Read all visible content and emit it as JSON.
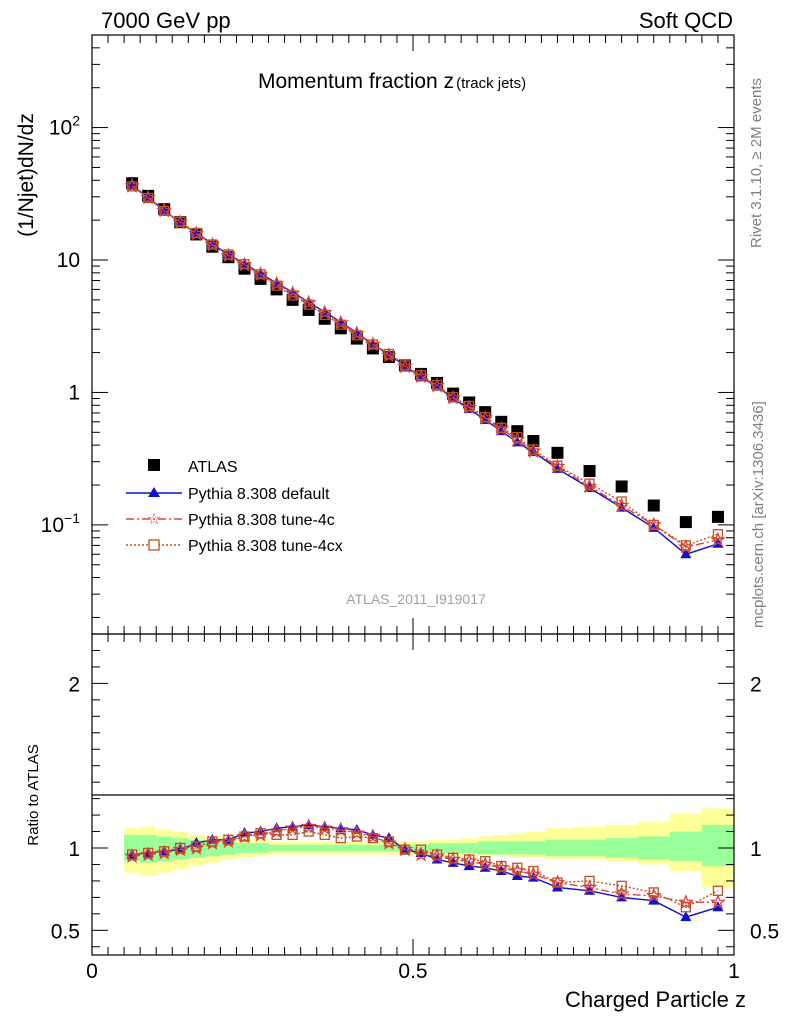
{
  "header": {
    "left": "7000 GeV pp",
    "right": "Soft QCD"
  },
  "side_labels": {
    "rivet": "Rivet 3.1.10, ≥ 2M events",
    "mcplots": "mcplots.cern.ch [arXiv:1306.3436]"
  },
  "watermark": "ATLAS_2011_I919017",
  "chart_data": [
    {
      "type": "scatter",
      "title_main": "Momentum fraction z",
      "title_sub": "(track jets)",
      "ylabel": "(1/Njet)dN/dz",
      "xlabel": "",
      "yscale": "log",
      "ylim": [
        0.015,
        500
      ],
      "xlim": [
        0,
        1
      ],
      "y_tick_labels": [
        {
          "value": 100,
          "base": "10",
          "exp": "2"
        },
        {
          "value": 10,
          "base": "10"
        },
        {
          "value": 1,
          "base": "1"
        },
        {
          "value": 0.1,
          "base": "10",
          "exp": "−1"
        }
      ],
      "legend_position": "bottom-left",
      "x": [
        0.0625,
        0.0875,
        0.1125,
        0.1375,
        0.1625,
        0.1875,
        0.2125,
        0.2375,
        0.2625,
        0.2875,
        0.3125,
        0.3375,
        0.3625,
        0.3875,
        0.4125,
        0.4375,
        0.4625,
        0.4875,
        0.5125,
        0.5375,
        0.5625,
        0.5875,
        0.6125,
        0.6375,
        0.6625,
        0.6875,
        0.725,
        0.775,
        0.825,
        0.875,
        0.925,
        0.975
      ],
      "series": [
        {
          "name": "ATLAS",
          "color": "#000000",
          "marker": "square",
          "values": [
            38,
            30.5,
            24.2,
            19.3,
            15.6,
            12.6,
            10.5,
            8.6,
            7.2,
            6.0,
            5.0,
            4.2,
            3.6,
            3.05,
            2.55,
            2.15,
            1.85,
            1.6,
            1.38,
            1.18,
            0.98,
            0.84,
            0.71,
            0.6,
            0.51,
            0.43,
            0.35,
            0.255,
            0.195,
            0.14,
            0.105,
            0.115
          ]
        },
        {
          "name": "Pythia 8.308 default",
          "color": "#1010cc",
          "marker": "triangle",
          "line": "solid",
          "values": [
            36.5,
            29.6,
            23.7,
            19.0,
            16.0,
            13.2,
            11.0,
            9.4,
            7.9,
            6.7,
            5.7,
            4.8,
            4.05,
            3.4,
            2.82,
            2.3,
            1.95,
            1.58,
            1.3,
            1.11,
            0.9,
            0.75,
            0.62,
            0.51,
            0.42,
            0.355,
            0.265,
            0.19,
            0.135,
            0.095,
            0.06,
            0.072
          ]
        },
        {
          "name": "Pythia 8.308 tune-4c",
          "color": "#e04040",
          "marker": "star",
          "line": "dashdot",
          "values": [
            36.2,
            29.5,
            23.6,
            19.2,
            15.8,
            13.0,
            10.8,
            9.2,
            7.8,
            6.6,
            5.6,
            4.75,
            4.0,
            3.35,
            2.78,
            2.3,
            1.9,
            1.57,
            1.32,
            1.12,
            0.91,
            0.77,
            0.64,
            0.53,
            0.44,
            0.36,
            0.275,
            0.195,
            0.14,
            0.1,
            0.068,
            0.077
          ]
        },
        {
          "name": "Pythia 8.308 tune-4cx",
          "color": "#c05020",
          "marker": "open-square",
          "line": "dotted",
          "values": [
            36.0,
            29.4,
            23.5,
            19.4,
            16.0,
            13.1,
            11.0,
            9.3,
            7.8,
            6.4,
            5.4,
            4.6,
            3.85,
            3.25,
            2.7,
            2.3,
            1.95,
            1.6,
            1.35,
            1.14,
            0.92,
            0.79,
            0.65,
            0.54,
            0.46,
            0.37,
            0.28,
            0.205,
            0.15,
            0.1,
            0.07,
            0.085
          ]
        }
      ]
    },
    {
      "type": "line",
      "ylabel": "Ratio to ATLAS",
      "xlabel": "Charged Particle z",
      "ylim": [
        0.35,
        2.3
      ],
      "xlim": [
        0,
        1
      ],
      "y_tick_labels": [
        "2",
        "1",
        "0.5"
      ],
      "x_tick_labels": [
        "0",
        "0.5",
        "1"
      ],
      "x": [
        0.0625,
        0.0875,
        0.1125,
        0.1375,
        0.1625,
        0.1875,
        0.2125,
        0.2375,
        0.2625,
        0.2875,
        0.3125,
        0.3375,
        0.3625,
        0.3875,
        0.4125,
        0.4375,
        0.4625,
        0.4875,
        0.5125,
        0.5375,
        0.5625,
        0.5875,
        0.6125,
        0.6375,
        0.6625,
        0.6875,
        0.725,
        0.775,
        0.825,
        0.875,
        0.925,
        0.975
      ],
      "band_stat": {
        "color": "#99ff99",
        "lower": [
          0.92,
          0.91,
          0.92,
          0.93,
          0.94,
          0.95,
          0.96,
          0.97,
          0.97,
          0.98,
          0.98,
          0.98,
          0.98,
          0.98,
          0.98,
          0.98,
          0.98,
          0.98,
          0.98,
          0.97,
          0.97,
          0.97,
          0.96,
          0.96,
          0.96,
          0.96,
          0.95,
          0.95,
          0.94,
          0.93,
          0.92,
          0.89
        ],
        "upper": [
          1.08,
          1.08,
          1.07,
          1.06,
          1.05,
          1.05,
          1.04,
          1.03,
          1.03,
          1.02,
          1.02,
          1.02,
          1.02,
          1.02,
          1.02,
          1.02,
          1.02,
          1.02,
          1.02,
          1.03,
          1.03,
          1.03,
          1.04,
          1.04,
          1.04,
          1.04,
          1.05,
          1.05,
          1.06,
          1.07,
          1.1,
          1.14
        ]
      },
      "band_total": {
        "color": "#ffff99",
        "lower": [
          0.85,
          0.83,
          0.85,
          0.87,
          0.89,
          0.91,
          0.93,
          0.94,
          0.95,
          0.96,
          0.96,
          0.96,
          0.96,
          0.96,
          0.96,
          0.96,
          0.96,
          0.96,
          0.96,
          0.96,
          0.95,
          0.95,
          0.95,
          0.95,
          0.94,
          0.94,
          0.93,
          0.93,
          0.92,
          0.9,
          0.86,
          0.76
        ],
        "upper": [
          1.12,
          1.13,
          1.11,
          1.1,
          1.08,
          1.07,
          1.06,
          1.05,
          1.05,
          1.04,
          1.04,
          1.04,
          1.04,
          1.04,
          1.04,
          1.04,
          1.04,
          1.04,
          1.04,
          1.05,
          1.05,
          1.06,
          1.07,
          1.08,
          1.09,
          1.1,
          1.12,
          1.13,
          1.14,
          1.16,
          1.21,
          1.24
        ]
      },
      "series": [
        {
          "name": "Pythia 8.308 default",
          "color": "#1010cc",
          "marker": "triangle",
          "line": "solid",
          "values": [
            0.96,
            0.97,
            0.98,
            0.99,
            1.03,
            1.05,
            1.05,
            1.09,
            1.1,
            1.12,
            1.13,
            1.14,
            1.13,
            1.12,
            1.11,
            1.08,
            1.06,
            0.99,
            0.97,
            0.93,
            0.91,
            0.89,
            0.88,
            0.86,
            0.83,
            0.82,
            0.76,
            0.74,
            0.7,
            0.68,
            0.58,
            0.64
          ]
        },
        {
          "name": "Pythia 8.308 tune-4c",
          "color": "#e04040",
          "marker": "star",
          "line": "dashdot",
          "values": [
            0.95,
            0.96,
            0.97,
            0.99,
            1.0,
            1.03,
            1.04,
            1.07,
            1.08,
            1.1,
            1.12,
            1.13,
            1.12,
            1.11,
            1.09,
            1.07,
            1.03,
            0.99,
            0.96,
            0.95,
            0.93,
            0.92,
            0.9,
            0.88,
            0.86,
            0.84,
            0.79,
            0.76,
            0.72,
            0.71,
            0.67,
            0.67
          ]
        },
        {
          "name": "Pythia 8.308 tune-4cx",
          "color": "#c05020",
          "marker": "open-square",
          "line": "dotted",
          "values": [
            0.96,
            0.97,
            0.98,
            1.0,
            1.01,
            1.04,
            1.05,
            1.07,
            1.09,
            1.08,
            1.08,
            1.1,
            1.08,
            1.06,
            1.07,
            1.06,
            1.04,
            0.99,
            0.99,
            0.96,
            0.94,
            0.93,
            0.92,
            0.89,
            0.88,
            0.86,
            0.79,
            0.8,
            0.77,
            0.73,
            0.64,
            0.74
          ]
        }
      ]
    }
  ]
}
